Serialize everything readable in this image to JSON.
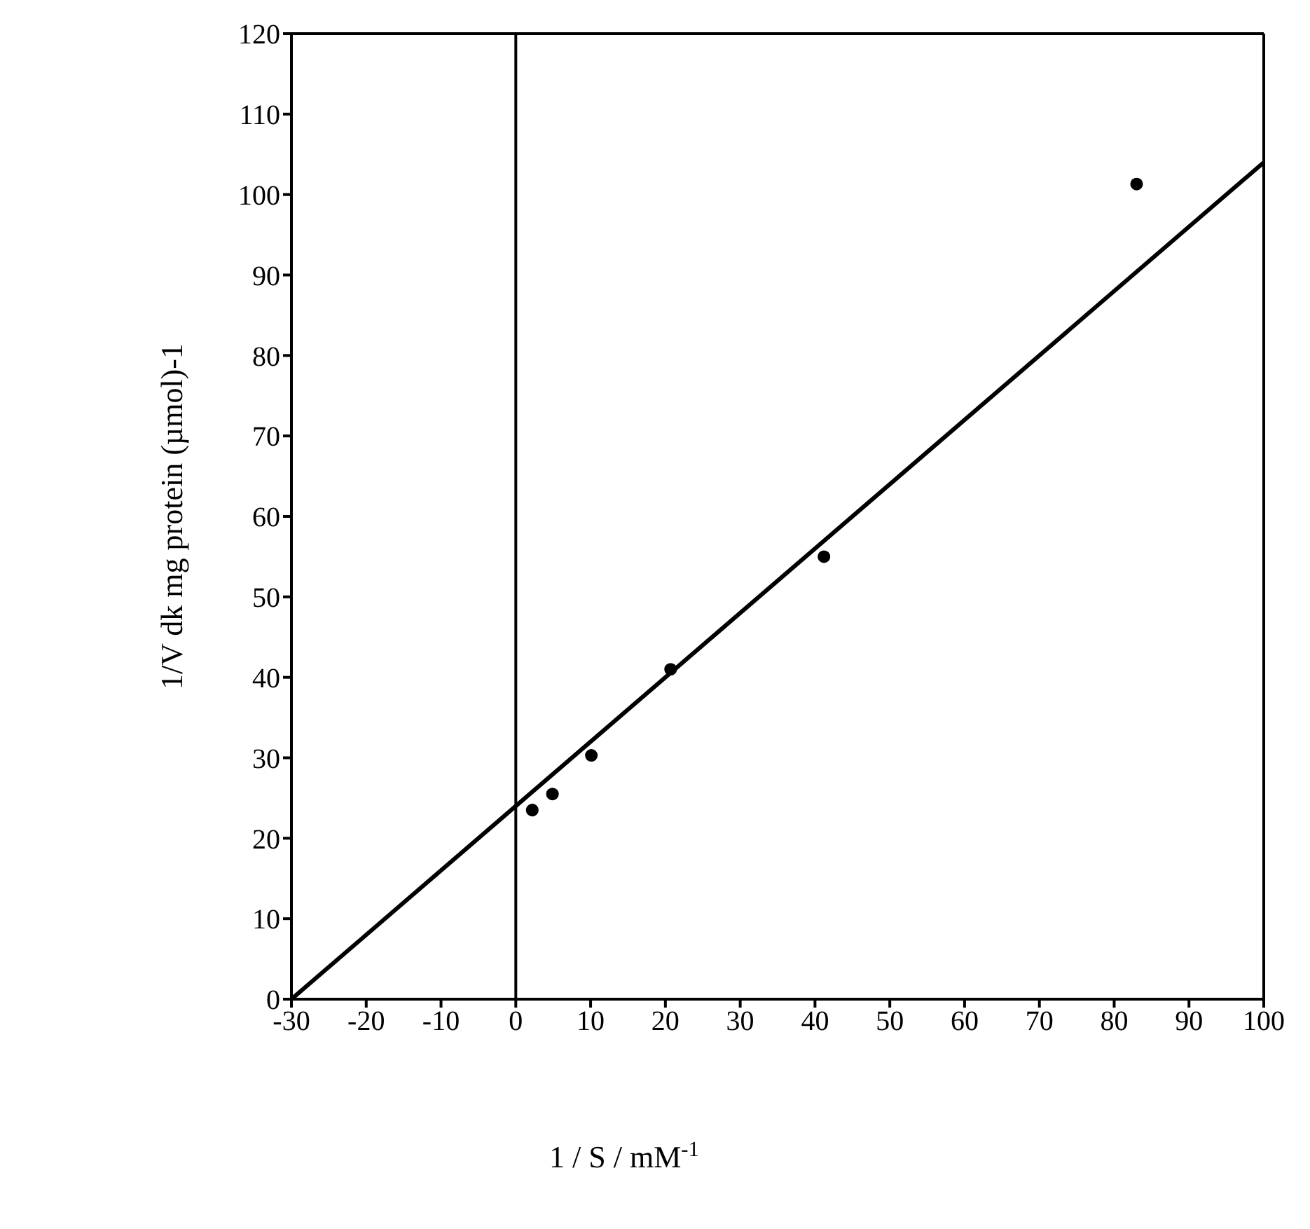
{
  "chart_data": {
    "type": "scatter",
    "xlabel": "1 / S  / mM$^{-1}$",
    "ylabel": "1/V dk mg protein (µmol)-1",
    "xlim": [
      -30,
      100
    ],
    "xticks": [
      -30,
      -20,
      -10,
      0,
      10,
      20,
      30,
      40,
      50,
      60,
      70,
      80,
      90,
      100
    ],
    "ylim": [
      0,
      120
    ],
    "yticks": [
      0,
      10,
      20,
      30,
      40,
      50,
      60,
      70,
      80,
      90,
      100,
      110,
      120
    ],
    "marker": "circle",
    "ref_lines": [
      {
        "axis": "x",
        "value": 0,
        "color": "#000000"
      }
    ],
    "series": [
      {
        "color": "#000000",
        "x": [
          2.2,
          4.9,
          10.1,
          20.7,
          41.2,
          83
        ],
        "values": [
          23.5,
          25.5,
          30.3,
          41,
          55,
          101.3
        ]
      },
      {
        "type": "line",
        "color": "#000000",
        "x": [
          -30,
          100
        ],
        "values": [
          0,
          104
        ],
        "marker": "none",
        "line_style": "solid"
      }
    ]
  }
}
